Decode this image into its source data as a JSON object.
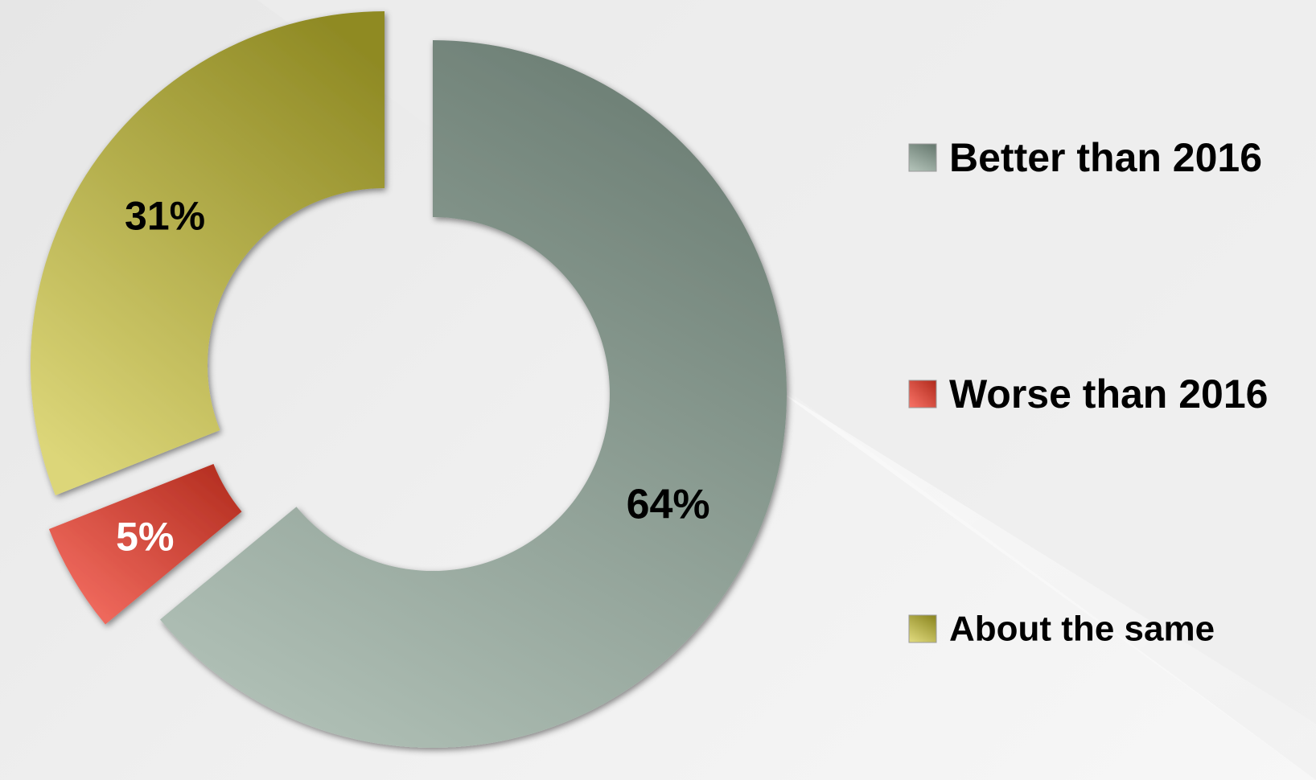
{
  "chart_data": {
    "type": "pie",
    "variant": "donut",
    "categories": [
      "Better than 2016",
      "Worse than 2016",
      "About the same"
    ],
    "values": [
      64,
      5,
      31
    ],
    "data_labels": [
      "64%",
      "5%",
      "31%"
    ],
    "label_colors": [
      "#000000",
      "#ffffff",
      "#000000"
    ],
    "colors": {
      "better": "#8a9b91",
      "worse": "#d13a2b",
      "same": "#b8ae3e"
    },
    "legend": {
      "position": "right",
      "entries": [
        "Better than 2016",
        "Worse than 2016",
        "About the same"
      ]
    },
    "title": ""
  }
}
